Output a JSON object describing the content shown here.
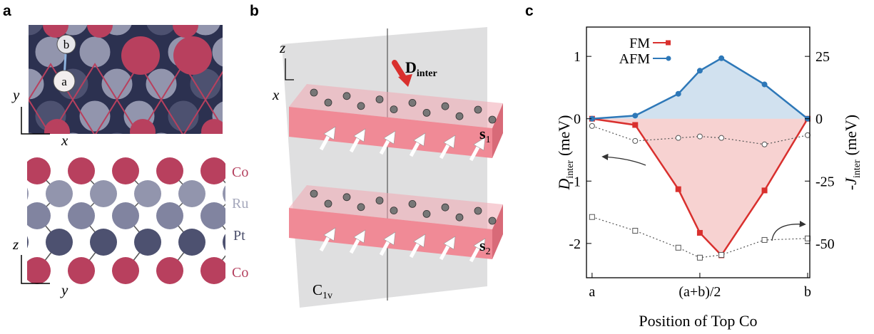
{
  "panel_a": {
    "label": "a",
    "top_view": {
      "atom_labels": [
        "b",
        "a"
      ],
      "axes": [
        "y",
        "x"
      ]
    },
    "side_view": {
      "layers": [
        "Co",
        "Ru",
        "Pt",
        "Co"
      ],
      "axes": [
        "z",
        "y"
      ]
    }
  },
  "panel_b": {
    "label": "b",
    "axes": [
      "z",
      "x"
    ],
    "vector": {
      "symbol": "D",
      "sub": "inter"
    },
    "spins": [
      {
        "symbol": "s",
        "sub": "1"
      },
      {
        "symbol": "s",
        "sub": "2"
      }
    ],
    "symmetry": {
      "symbol": "C",
      "sub": "1v"
    }
  },
  "chart_data": {
    "type": "line",
    "panel_label": "c",
    "x_label": "Position of Top Co",
    "y_label": {
      "symbol": "D",
      "sub": "inter",
      "unit": "(meV)"
    },
    "y2_label": {
      "symbol": "-J",
      "sub": "inter",
      "unit": "(meV)"
    },
    "x": [
      0,
      0.2,
      0.4,
      0.5,
      0.6,
      0.8,
      1.0
    ],
    "xlim": [
      -0.026,
      1.01
    ],
    "xticks": [
      {
        "value": 0,
        "label": "a"
      },
      {
        "value": 0.5,
        "label": "(a+b)/2"
      },
      {
        "value": 1,
        "label": "b"
      }
    ],
    "ylim": [
      -2.55,
      1.47
    ],
    "yticks": [
      1,
      0,
      -1,
      -2
    ],
    "y2lim": [
      -63.75,
      36.75
    ],
    "y2ticks": [
      25,
      0,
      -25,
      -50
    ],
    "legend_position": "upper left",
    "series": [
      {
        "name": "FM",
        "color": "#d9302e",
        "marker": "square",
        "line_style": "solid",
        "area": true,
        "values": [
          0,
          -0.1,
          -1.13,
          -1.83,
          -2.19,
          -1.15,
          0
        ]
      },
      {
        "name": "AFM",
        "color": "#2e78b8",
        "marker": "circle",
        "line_style": "solid",
        "area": true,
        "values": [
          0,
          0.05,
          0.4,
          0.77,
          0.97,
          0.55,
          0
        ]
      },
      {
        "color": "#555555",
        "marker": "circle",
        "line_style": "dotted",
        "area": false,
        "axis": "y2",
        "values": [
          -2.9,
          -8.9,
          -7.7,
          -7.1,
          -7.7,
          -10.3,
          -6.6
        ]
      },
      {
        "color": "#555555",
        "marker": "square",
        "line_style": "dotted",
        "area": false,
        "axis": "y2",
        "values": [
          -39.4,
          -44.9,
          -51.7,
          -55.7,
          -54.6,
          -48.6,
          -48
        ]
      }
    ]
  }
}
